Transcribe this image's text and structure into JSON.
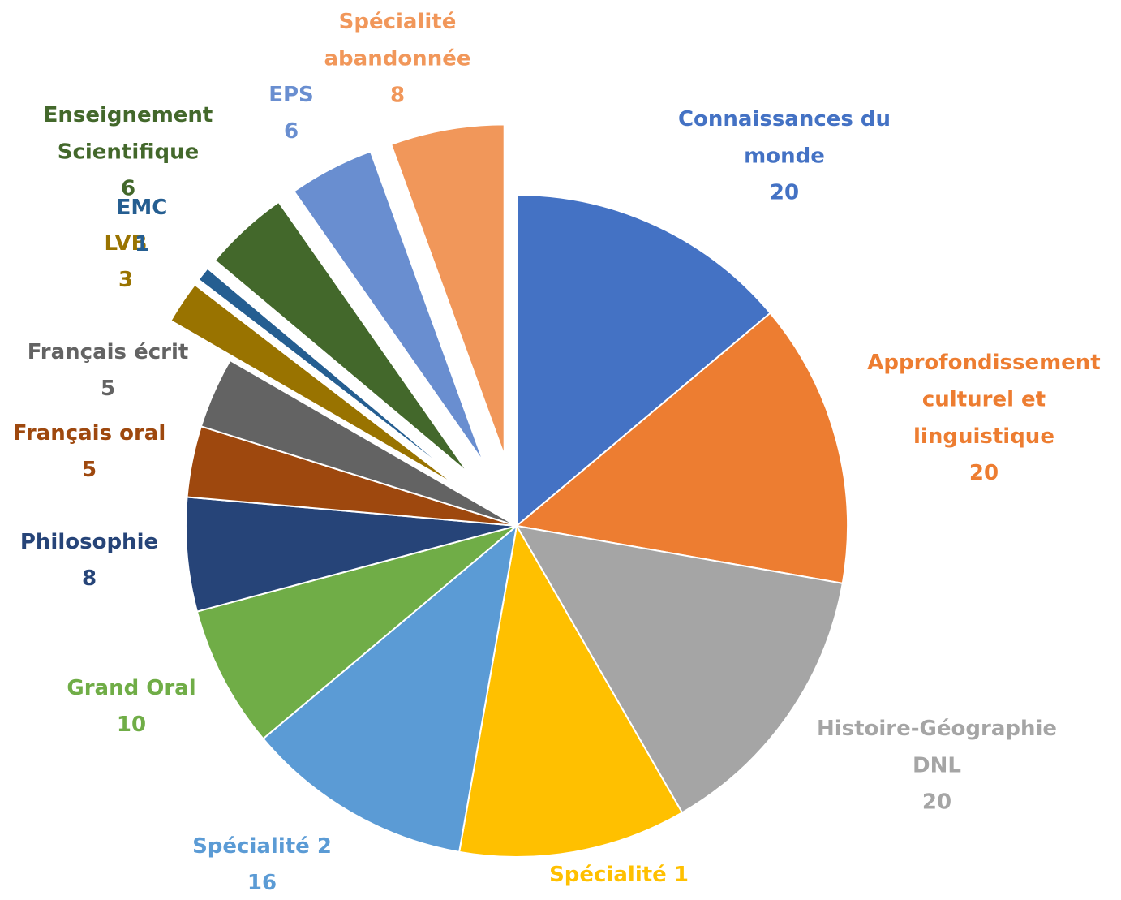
{
  "chart_data": {
    "type": "pie",
    "categories": [
      "Connaissances du monde",
      "Approfondissement culturel et linguistique",
      "Histoire-Géographie DNL",
      "Spécialité 1",
      "Spécialité 2",
      "Grand Oral",
      "Philosophie",
      "Français oral",
      "Français écrit",
      "LVB",
      "EMC",
      "Enseignement Scientifique",
      "EPS",
      "Spécialité abandonnée"
    ],
    "values": [
      20,
      20,
      20,
      16,
      16,
      10,
      8,
      5,
      5,
      3,
      1,
      6,
      6,
      8
    ],
    "colors": [
      "#4472c4",
      "#ed7d31",
      "#a5a5a5",
      "#ffc000",
      "#5b9bd5",
      "#70ad47",
      "#264478",
      "#9e480e",
      "#636363",
      "#997300",
      "#255e91",
      "#43682b",
      "#698ed0",
      "#f1975a"
    ],
    "explode": [
      false,
      false,
      false,
      false,
      false,
      false,
      false,
      false,
      false,
      true,
      true,
      true,
      true,
      true
    ]
  }
}
